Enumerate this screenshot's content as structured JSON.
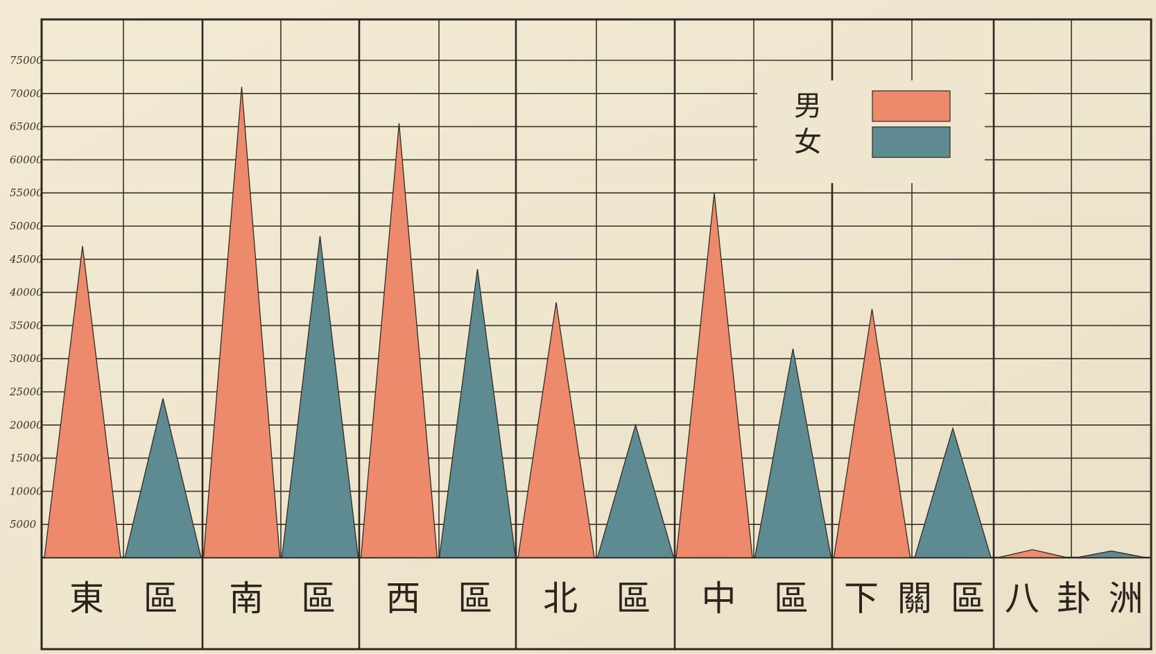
{
  "chart_data": {
    "type": "bar",
    "mark_shape": "triangle",
    "categories": [
      "東區",
      "南區",
      "西區",
      "北區",
      "中區",
      "下關區",
      "八卦洲"
    ],
    "category_glyphs": [
      [
        "東",
        "區"
      ],
      [
        "南",
        "區"
      ],
      [
        "西",
        "區"
      ],
      [
        "北",
        "區"
      ],
      [
        "中",
        "區"
      ],
      [
        "下",
        "關",
        "區"
      ],
      [
        "八",
        "卦",
        "洲"
      ]
    ],
    "series": [
      {
        "name": "男",
        "color": "#ee8a6c",
        "values": [
          47000,
          71000,
          65500,
          38500,
          55000,
          37500,
          1200
        ]
      },
      {
        "name": "女",
        "color": "#5e8a92",
        "values": [
          24000,
          48500,
          43500,
          20000,
          31500,
          19500,
          1000
        ]
      }
    ],
    "yticks": [
      "5000",
      "10000",
      "15000",
      "20000",
      "25000",
      "30000",
      "35000",
      "40000",
      "45000",
      "50000",
      "55000",
      "60000",
      "65000",
      "70000",
      "75000"
    ],
    "ylim": [
      0,
      75000
    ],
    "grid": true,
    "legend": {
      "position": "top-right",
      "labels": [
        "男",
        "女"
      ]
    }
  }
}
